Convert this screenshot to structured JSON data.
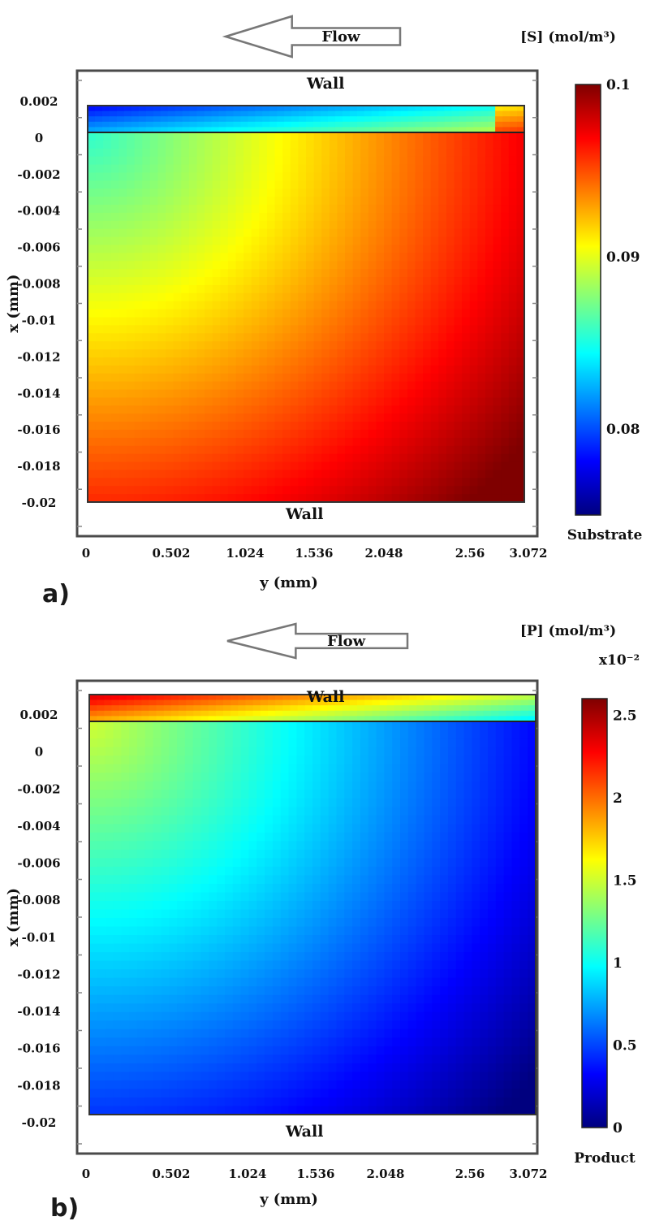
{
  "chart_data": [
    {
      "type": "heatmap",
      "panel_label": "a)",
      "flow_label": "Flow",
      "flow_direction": "left",
      "colorbar_title": "[S] (mol/m³)",
      "colorbar_multiplier": "",
      "colorbar_caption": "Substrate",
      "colorbar_ticks": [
        "0.1",
        "0.09",
        "0.08"
      ],
      "colorbar_tick_values": [
        0.1,
        0.09,
        0.08
      ],
      "colorbar_range": [
        0.075,
        0.1
      ],
      "xlabel": "y (mm)",
      "ylabel": "x (mm)",
      "x_ticks": [
        "0",
        "0.502",
        "1.024",
        "1.536",
        "2.048",
        "2.56",
        "3.072"
      ],
      "x_tick_values": [
        0,
        0.502,
        1.024,
        1.536,
        2.048,
        2.56,
        3.072
      ],
      "y_ticks": [
        "0.002",
        "0",
        "-0.002",
        "-0.004",
        "-0.006",
        "-0.008",
        "-0.01",
        "-0.012",
        "-0.014",
        "-0.016",
        "-0.018",
        "-0.02"
      ],
      "y_tick_values": [
        0.002,
        0,
        -0.002,
        -0.004,
        -0.006,
        -0.008,
        -0.01,
        -0.012,
        -0.014,
        -0.016,
        -0.018,
        -0.02
      ],
      "xlim": [
        0,
        3.072
      ],
      "ylim": [
        -0.02,
        0.0015
      ],
      "annotations": {
        "top": "Wall",
        "bottom": "Wall"
      },
      "field_low_corner": "top-left",
      "field_high_corner": "bottom-right",
      "colormap": "jet"
    },
    {
      "type": "heatmap",
      "panel_label": "b)",
      "flow_label": "Flow",
      "flow_direction": "left",
      "colorbar_title": "[P] (mol/m³)",
      "colorbar_multiplier": "x10⁻²",
      "colorbar_caption": "Product",
      "colorbar_ticks": [
        "2.5",
        "2",
        "1.5",
        "1",
        "0.5",
        "0"
      ],
      "colorbar_tick_values": [
        2.5,
        2,
        1.5,
        1,
        0.5,
        0
      ],
      "colorbar_range": [
        0,
        2.6
      ],
      "xlabel": "y (mm)",
      "ylabel": "x (mm)",
      "x_ticks": [
        "0",
        "0.502",
        "1.024",
        "1.536",
        "2.048",
        "2.56",
        "3.072"
      ],
      "x_tick_values": [
        0,
        0.502,
        1.024,
        1.536,
        2.048,
        2.56,
        3.072
      ],
      "y_ticks": [
        "0.002",
        "0",
        "-0.002",
        "-0.004",
        "-0.006",
        "-0.008",
        "-0.01",
        "-0.012",
        "-0.014",
        "-0.016",
        "-0.018",
        "-0.02"
      ],
      "y_tick_values": [
        0.002,
        0,
        -0.002,
        -0.004,
        -0.006,
        -0.008,
        -0.01,
        -0.012,
        -0.014,
        -0.016,
        -0.018,
        -0.02
      ],
      "xlim": [
        0,
        3.072
      ],
      "ylim": [
        -0.02,
        0.0015
      ],
      "annotations": {
        "top": "Wall",
        "bottom": "Wall"
      },
      "field_high_corner": "top-left",
      "field_low_corner": "bottom-right",
      "colormap": "jet"
    }
  ],
  "colors": {
    "jet": [
      "#00007f",
      "#0000ff",
      "#007fff",
      "#00ffff",
      "#7fff7f",
      "#ffff00",
      "#ff7f00",
      "#ff0000",
      "#7f0000"
    ],
    "frame": "#4a4a4a",
    "text": "#111111"
  }
}
